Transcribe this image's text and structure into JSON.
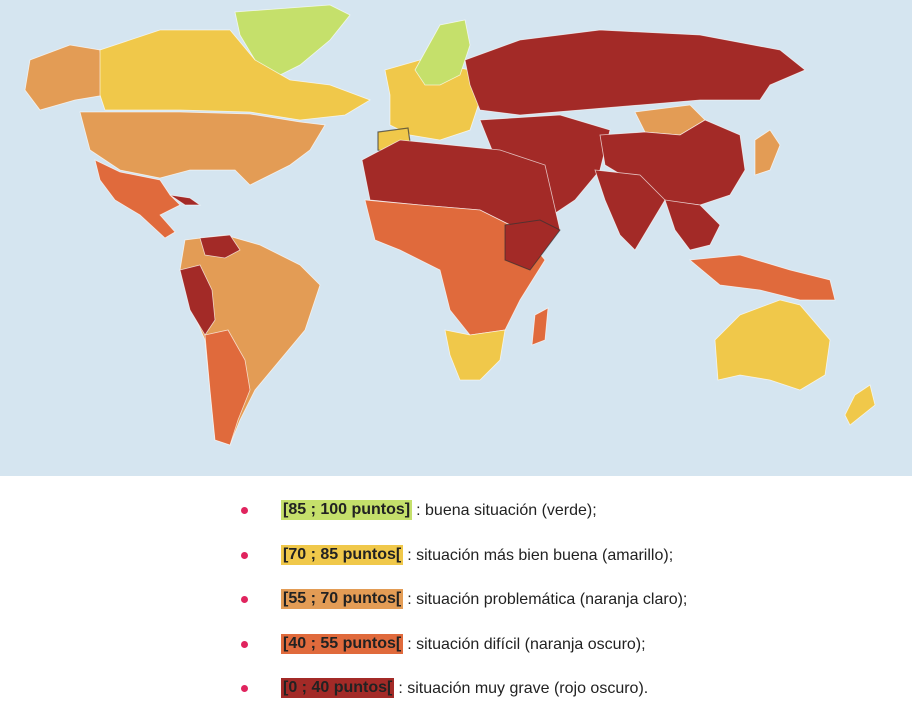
{
  "colors": {
    "ocean": "#d5e5f0",
    "verde": "#c5e06b",
    "amarillo": "#f0c84a",
    "naranja_claro": "#e39c55",
    "naranja_oscuro": "#e06a3c",
    "rojo_oscuro": "#a32a27",
    "bullet": "#e0245e"
  },
  "legend": [
    {
      "range": "[85 ; 100 puntos]",
      "desc": ": buena situación (verde);",
      "color": "#c5e06b"
    },
    {
      "range": "[70 ; 85 puntos[",
      "desc": ": situación más bien buena (amarillo);",
      "color": "#f0c84a"
    },
    {
      "range": "[55 ; 70 puntos[",
      "desc": ": situación problemática (naranja claro);",
      "color": "#e39c55"
    },
    {
      "range": "[40 ; 55 puntos[",
      "desc": ": situación difícil (naranja oscuro);",
      "color": "#e06a3c"
    },
    {
      "range": "[0 ; 40 puntos[",
      "desc": ": situación muy grave (rojo oscuro).",
      "color": "#a32a27"
    }
  ]
}
